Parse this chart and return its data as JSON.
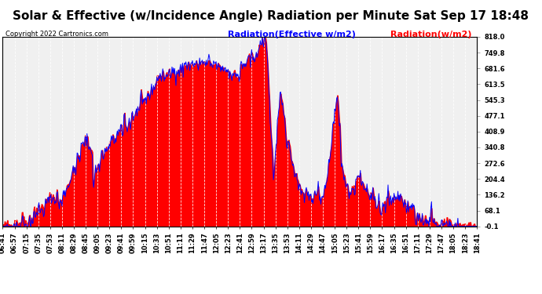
{
  "title": "Solar & Effective (w/Incidence Angle) Radiation per Minute Sat Sep 17 18:48",
  "copyright": "Copyright 2022 Cartronics.com",
  "legend_blue": "Radiation(Effective w/m2)",
  "legend_red": "Radiation(w/m2)",
  "ylabel_right_values": [
    818.0,
    749.8,
    681.6,
    613.5,
    545.3,
    477.1,
    408.9,
    340.8,
    272.6,
    204.4,
    136.2,
    68.1,
    -0.1
  ],
  "ymin": -0.1,
  "ymax": 818.0,
  "background_color": "#ffffff",
  "plot_bg_color": "#f0f0f0",
  "grid_color": "#c8c8c8",
  "fill_color_red": "#ff0000",
  "line_color_blue": "#0000ff",
  "title_fontsize": 11,
  "copyright_fontsize": 6,
  "legend_fontsize": 8,
  "tick_fontsize": 6,
  "x_tick_labels": [
    "06:41",
    "06:57",
    "07:15",
    "07:35",
    "07:53",
    "08:11",
    "08:29",
    "08:45",
    "09:05",
    "09:23",
    "09:41",
    "09:59",
    "10:15",
    "10:33",
    "10:51",
    "11:11",
    "11:29",
    "11:47",
    "12:05",
    "12:23",
    "12:41",
    "12:59",
    "13:17",
    "13:35",
    "13:53",
    "14:11",
    "14:29",
    "14:47",
    "15:05",
    "15:23",
    "15:41",
    "15:59",
    "16:17",
    "16:35",
    "16:51",
    "17:11",
    "17:29",
    "17:47",
    "18:05",
    "18:23",
    "18:41"
  ]
}
